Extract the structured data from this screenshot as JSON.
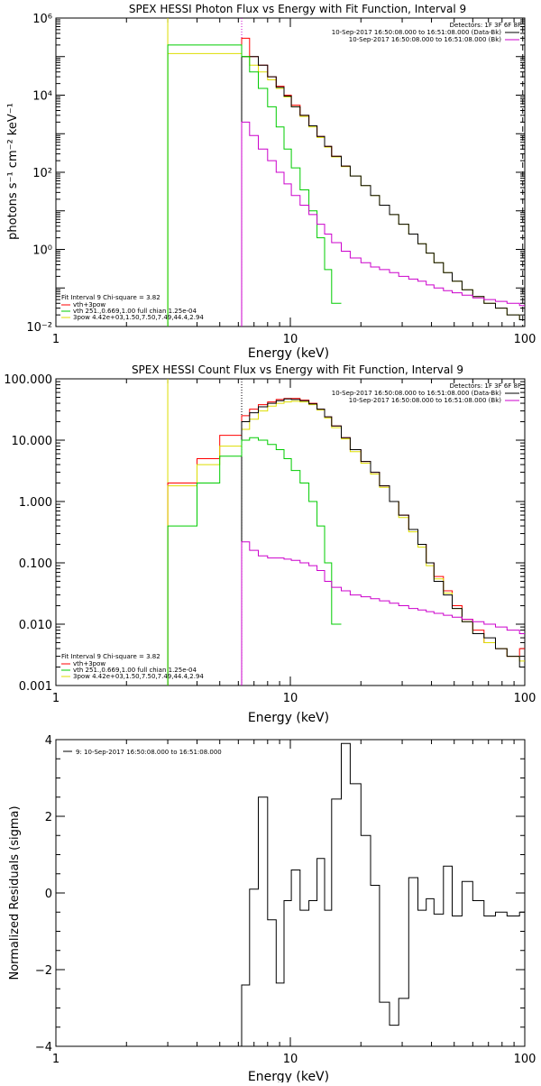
{
  "colors": {
    "background": "#ffffff",
    "axis": "#000000",
    "red": "#ff0000",
    "green": "#00cc00",
    "yellow": "#dddd00",
    "magenta": "#cc00cc",
    "black": "#000000"
  },
  "chart_data": [
    {
      "type": "line",
      "title": "SPEX HESSI Photon Flux vs Energy with Fit Function, Interval 9",
      "xlabel": "Energy (keV)",
      "ylabel": "photons s⁻¹ cm⁻² keV⁻¹",
      "x_scale": "log",
      "y_scale": "log",
      "xlim": [
        1,
        100
      ],
      "ylim": [
        0.01,
        1000000
      ],
      "x_ticks": [
        {
          "v": 1,
          "label": "1"
        },
        {
          "v": 10,
          "label": "10"
        },
        {
          "v": 100,
          "label": "100"
        }
      ],
      "y_ticks": [
        {
          "v": 0.01,
          "label": "10⁻²"
        },
        {
          "v": 1,
          "label": "10⁰"
        },
        {
          "v": 100,
          "label": "10²"
        },
        {
          "v": 10000,
          "label": "10⁴"
        },
        {
          "v": 1000000,
          "label": "10⁶"
        }
      ],
      "legend_top": {
        "placement": "top-right",
        "heading": "Detectors: 1F 3F 6F 8F",
        "entries": [
          {
            "text": "10-Sep-2017 16:50:08.000 to 16:51:08.000 (Data-Bk)",
            "color": "black"
          },
          {
            "text": "10-Sep-2017 16:50:08.000 to 16:51:08.000 (Bk)",
            "color": "magenta"
          }
        ]
      },
      "legend_bottom": {
        "placement": "bottom-left",
        "heading": "Fit Interval 9   Chi-square = 3.82",
        "entries": [
          {
            "text": "vth+3pow",
            "color": "red"
          },
          {
            "text": "vth 251.,0.669,1.00  full chian 1.25e-04",
            "color": "green"
          },
          {
            "text": "3pow 4.42e+03,1.50,7.50,7.49,44.4,2.94",
            "color": "yellow"
          }
        ]
      },
      "vlines": [
        {
          "x": 3,
          "color": "yellow",
          "style": "solid"
        },
        {
          "x": 6.2,
          "color": "magenta",
          "style": "dotted"
        },
        {
          "x": 98,
          "color": "black",
          "style": "dashed"
        }
      ],
      "series": [
        {
          "color": "yellow",
          "edges": [
            3,
            6.2,
            6.7,
            7.3,
            8,
            8.7,
            9.4,
            10.1,
            11,
            12,
            13,
            14,
            15,
            16.5,
            18,
            20,
            22,
            24,
            26.5,
            29,
            32,
            35,
            38,
            41,
            45,
            49,
            54,
            60,
            67,
            75,
            84,
            95,
            100
          ],
          "values": [
            120000,
            100000,
            60000,
            40000,
            25000,
            15000,
            9000,
            5000,
            2800,
            1500,
            800,
            450,
            250,
            140,
            80,
            45,
            25,
            14,
            8,
            4.5,
            2.5,
            1.4,
            0.8,
            0.45,
            0.25,
            0.15,
            0.09,
            0.06,
            0.04,
            0.03,
            0.02,
            0.015
          ]
        },
        {
          "color": "red",
          "edges": [
            6.2,
            6.7,
            7.3,
            8,
            8.7,
            9.4,
            10.1,
            11,
            12,
            13,
            14,
            15,
            16.5,
            18
          ],
          "values": [
            300000,
            100000,
            60000,
            30000,
            17000,
            10000,
            5500,
            3000,
            1600,
            850,
            470,
            260,
            145
          ]
        },
        {
          "color": "black",
          "edges": [
            6.2,
            6.7,
            7.3,
            8,
            8.7,
            9.4,
            10.1,
            11,
            12,
            13,
            14,
            15,
            16.5,
            18,
            20,
            22,
            24,
            26.5,
            29,
            32,
            35,
            38,
            41,
            45,
            49,
            54,
            60,
            67,
            75,
            84,
            95,
            100
          ],
          "values": [
            100000,
            100000,
            60000,
            30000,
            16000,
            9500,
            5000,
            3000,
            1600,
            850,
            470,
            260,
            145,
            80,
            45,
            25,
            14,
            8,
            4.5,
            2.5,
            1.4,
            0.8,
            0.45,
            0.25,
            0.15,
            0.09,
            0.06,
            0.04,
            0.03,
            0.02,
            0.015
          ]
        },
        {
          "color": "green",
          "edges": [
            3,
            6.2,
            6.7,
            7.3,
            8,
            8.7,
            9.4,
            10.1,
            11,
            12,
            13,
            14,
            15,
            16.5
          ],
          "values": [
            200000,
            100000,
            40000,
            15000,
            5000,
            1500,
            400,
            130,
            35,
            10,
            2,
            0.3,
            0.04
          ]
        },
        {
          "color": "magenta",
          "edges": [
            6.2,
            6.7,
            7.3,
            8,
            8.7,
            9.4,
            10.1,
            11,
            12,
            13,
            14,
            15,
            16.5,
            18,
            20,
            22,
            24,
            26.5,
            29,
            32,
            35,
            38,
            41,
            45,
            49,
            54,
            60,
            67,
            75,
            84,
            95,
            100
          ],
          "values": [
            2000,
            900,
            400,
            200,
            100,
            50,
            25,
            14,
            8,
            4.5,
            2.5,
            1.5,
            0.9,
            0.6,
            0.45,
            0.35,
            0.3,
            0.25,
            0.2,
            0.17,
            0.15,
            0.12,
            0.1,
            0.085,
            0.075,
            0.065,
            0.055,
            0.05,
            0.045,
            0.04,
            0.035
          ]
        }
      ]
    },
    {
      "type": "line",
      "title": "SPEX HESSI Count Flux vs Energy with Fit Function, Interval 9",
      "xlabel": "Energy (keV)",
      "ylabel": "",
      "x_scale": "log",
      "y_scale": "log",
      "xlim": [
        1,
        100
      ],
      "ylim": [
        0.001,
        100
      ],
      "x_ticks": [
        {
          "v": 1,
          "label": "1"
        },
        {
          "v": 10,
          "label": "10"
        },
        {
          "v": 100,
          "label": "100"
        }
      ],
      "y_ticks": [
        {
          "v": 0.001,
          "label": "0.001"
        },
        {
          "v": 0.01,
          "label": "0.010"
        },
        {
          "v": 0.1,
          "label": "0.100"
        },
        {
          "v": 1,
          "label": "1.000"
        },
        {
          "v": 10,
          "label": "10.000"
        },
        {
          "v": 100,
          "label": "100.000"
        }
      ],
      "legend_top": {
        "placement": "top-right",
        "heading": "Detectors: 1F 3F 6F 8F",
        "entries": [
          {
            "text": "10-Sep-2017 16:50:08.000 to 16:51:08.000 (Data-Bk)",
            "color": "black"
          },
          {
            "text": "10-Sep-2017 16:50:08.000 to 16:51:08.000 (Bk)",
            "color": "magenta"
          }
        ]
      },
      "legend_bottom": {
        "placement": "bottom-left",
        "heading": "Fit Interval 9   Chi-square = 3.82",
        "entries": [
          {
            "text": "vth+3pow",
            "color": "red"
          },
          {
            "text": "vth 251.,0.669,1.00  full chian 1.25e-04",
            "color": "green"
          },
          {
            "text": "3pow 4.42e+03,1.50,7.50,7.49,44.4,2.94",
            "color": "yellow"
          }
        ]
      },
      "vlines": [
        {
          "x": 3,
          "color": "yellow",
          "style": "solid"
        },
        {
          "x": 6.2,
          "color": "magenta",
          "style": "dotted"
        }
      ],
      "series": [
        {
          "color": "red",
          "edges": [
            3,
            4,
            5,
            6.2,
            6.7,
            7.3,
            8,
            8.7,
            9.4,
            10.1,
            11,
            12,
            13,
            14,
            15,
            16.5,
            18,
            20,
            22,
            24,
            26.5,
            29,
            32,
            35,
            38,
            41,
            45,
            49,
            54,
            60,
            67,
            75,
            84,
            95,
            100
          ],
          "values": [
            2,
            5,
            12,
            25,
            32,
            38,
            42,
            46,
            48,
            48,
            45,
            40,
            32,
            24,
            17,
            11,
            7,
            4.5,
            3,
            1.8,
            1,
            0.6,
            0.35,
            0.2,
            0.1,
            0.06,
            0.035,
            0.02,
            0.012,
            0.008,
            0.005,
            0.004,
            0.003,
            0.004
          ]
        },
        {
          "color": "yellow",
          "edges": [
            3,
            4,
            5,
            6.2,
            6.7,
            7.3,
            8,
            8.7,
            9.4,
            10.1,
            11,
            12,
            13,
            14,
            15,
            16.5,
            18,
            20,
            22,
            24,
            26.5,
            29,
            32,
            35,
            38,
            41,
            45,
            49,
            54,
            60,
            67,
            75,
            84,
            95,
            100
          ],
          "values": [
            1.8,
            4,
            8,
            15,
            22,
            30,
            36,
            40,
            42,
            43,
            42,
            38,
            31,
            23,
            16,
            10.5,
            6.5,
            4.2,
            2.8,
            1.7,
            1,
            0.55,
            0.32,
            0.18,
            0.09,
            0.055,
            0.032,
            0.018,
            0.011,
            0.007,
            0.005,
            0.004,
            0.003,
            0.0025
          ]
        },
        {
          "color": "black",
          "edges": [
            6.2,
            6.7,
            7.3,
            8,
            8.7,
            9.4,
            10.1,
            11,
            12,
            13,
            14,
            15,
            16.5,
            18,
            20,
            22,
            24,
            26.5,
            29,
            32,
            35,
            38,
            41,
            45,
            49,
            54,
            60,
            67,
            75,
            84,
            95,
            100
          ],
          "values": [
            20,
            28,
            35,
            40,
            44,
            47,
            46,
            44,
            39,
            32,
            24,
            17,
            11,
            7,
            4.5,
            3,
            1.8,
            1,
            0.6,
            0.35,
            0.2,
            0.1,
            0.05,
            0.03,
            0.018,
            0.011,
            0.007,
            0.006,
            0.004,
            0.003,
            0.002
          ]
        },
        {
          "color": "green",
          "edges": [
            3,
            4,
            5,
            6.2,
            6.7,
            7.3,
            8,
            8.7,
            9.4,
            10.1,
            11,
            12,
            13,
            14,
            15,
            16.5
          ],
          "values": [
            0.4,
            2,
            5.5,
            10,
            11,
            10,
            8.5,
            7,
            5,
            3.2,
            2,
            1,
            0.4,
            0.1,
            0.01
          ]
        },
        {
          "color": "magenta",
          "edges": [
            6.2,
            6.7,
            7.3,
            8,
            8.7,
            9.4,
            10.1,
            11,
            12,
            13,
            14,
            15,
            16.5,
            18,
            20,
            22,
            24,
            26.5,
            29,
            32,
            35,
            38,
            41,
            45,
            49,
            54,
            60,
            67,
            75,
            84,
            95,
            100
          ],
          "values": [
            0.22,
            0.16,
            0.13,
            0.12,
            0.12,
            0.115,
            0.11,
            0.1,
            0.09,
            0.075,
            0.05,
            0.04,
            0.035,
            0.03,
            0.028,
            0.026,
            0.024,
            0.022,
            0.02,
            0.018,
            0.017,
            0.016,
            0.015,
            0.014,
            0.013,
            0.012,
            0.011,
            0.01,
            0.009,
            0.008,
            0.007
          ]
        }
      ]
    },
    {
      "type": "line",
      "title": "",
      "xlabel": "Energy (keV)",
      "ylabel": "Normalized Residuals (sigma)",
      "x_scale": "log",
      "y_scale": "linear",
      "xlim": [
        1,
        100
      ],
      "ylim": [
        -4,
        4
      ],
      "x_ticks": [
        {
          "v": 1,
          "label": "1"
        },
        {
          "v": 10,
          "label": "10"
        },
        {
          "v": 100,
          "label": "100"
        }
      ],
      "y_ticks": [
        {
          "v": -4,
          "label": "−4"
        },
        {
          "v": -2,
          "label": "−2"
        },
        {
          "v": 0,
          "label": "0"
        },
        {
          "v": 2,
          "label": "2"
        },
        {
          "v": 4,
          "label": "4"
        }
      ],
      "legend_top": {
        "placement": "top-left",
        "heading": "",
        "entries": [
          {
            "text": "9: 10-Sep-2017 16:50:08.000 to 16:51:08.000",
            "color": "black"
          }
        ]
      },
      "series": [
        {
          "color": "black",
          "edges": [
            6.2,
            6.7,
            7.3,
            8,
            8.7,
            9.4,
            10.1,
            11,
            12,
            13,
            14,
            15,
            16.5,
            18,
            20,
            22,
            24,
            26.5,
            29,
            32,
            35,
            38,
            41,
            45,
            49,
            54,
            60,
            67,
            75,
            84,
            95,
            100
          ],
          "values": [
            -2.4,
            0.1,
            2.5,
            -0.7,
            -2.35,
            -0.2,
            0.6,
            -0.45,
            -0.2,
            0.9,
            -0.45,
            2.45,
            3.9,
            2.85,
            1.5,
            0.2,
            -2.85,
            -3.45,
            -2.75,
            0.4,
            -0.45,
            -0.15,
            -0.55,
            0.7,
            -0.6,
            0.3,
            -0.2,
            -0.6,
            -0.5,
            -0.6,
            -0.5
          ]
        }
      ]
    }
  ]
}
